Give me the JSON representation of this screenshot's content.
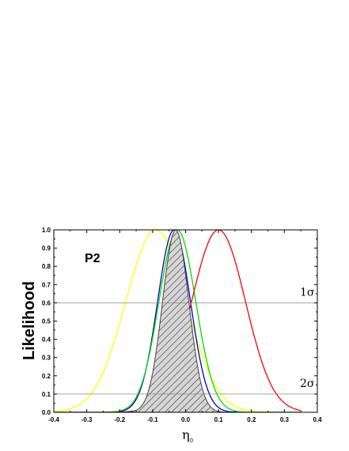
{
  "chart_data": {
    "type": "line",
    "title": "",
    "xlabel": "η",
    "xlabel_subscript": "0",
    "ylabel": "Likelihood",
    "xlim": [
      -0.4,
      0.4
    ],
    "ylim": [
      0.0,
      1.0
    ],
    "x_ticks": [
      "-0.4",
      "-0.3",
      "-0.2",
      "-0.1",
      "0.0",
      "0.1",
      "0.2",
      "0.3",
      "0.4"
    ],
    "y_ticks": [
      "0.0",
      "0.1",
      "0.2",
      "0.3",
      "0.4",
      "0.5",
      "0.6",
      "0.7",
      "0.8",
      "0.9",
      "1.0"
    ],
    "panel_label": "P2",
    "grid": false,
    "reference_lines": [
      {
        "y": 0.6,
        "label": "1σ",
        "color": "#888888"
      },
      {
        "y": 0.1,
        "label": "2σ",
        "color": "#888888"
      }
    ],
    "series": [
      {
        "color": "#ffff00",
        "style": "gaussian",
        "mean": -0.09,
        "sigma": 0.092,
        "x_range": [
          -0.4,
          0.35
        ]
      },
      {
        "color": "#0000cc",
        "style": "gaussian",
        "mean": -0.035,
        "sigma": 0.05,
        "x_range": [
          -0.4,
          0.35
        ]
      },
      {
        "color": "#00dd00",
        "style": "gaussian",
        "mean": -0.025,
        "sigma": 0.056,
        "x_range": [
          -0.4,
          0.35
        ]
      },
      {
        "color": "#ff0000",
        "style": "gaussian",
        "mean": 0.1,
        "sigma": 0.082,
        "x_range": [
          -0.4,
          0.35
        ]
      },
      {
        "color": "#444444",
        "style": "hatched-gaussian",
        "mean": -0.03,
        "sigma": 0.04,
        "x_range": [
          -0.4,
          0.35
        ]
      }
    ]
  }
}
